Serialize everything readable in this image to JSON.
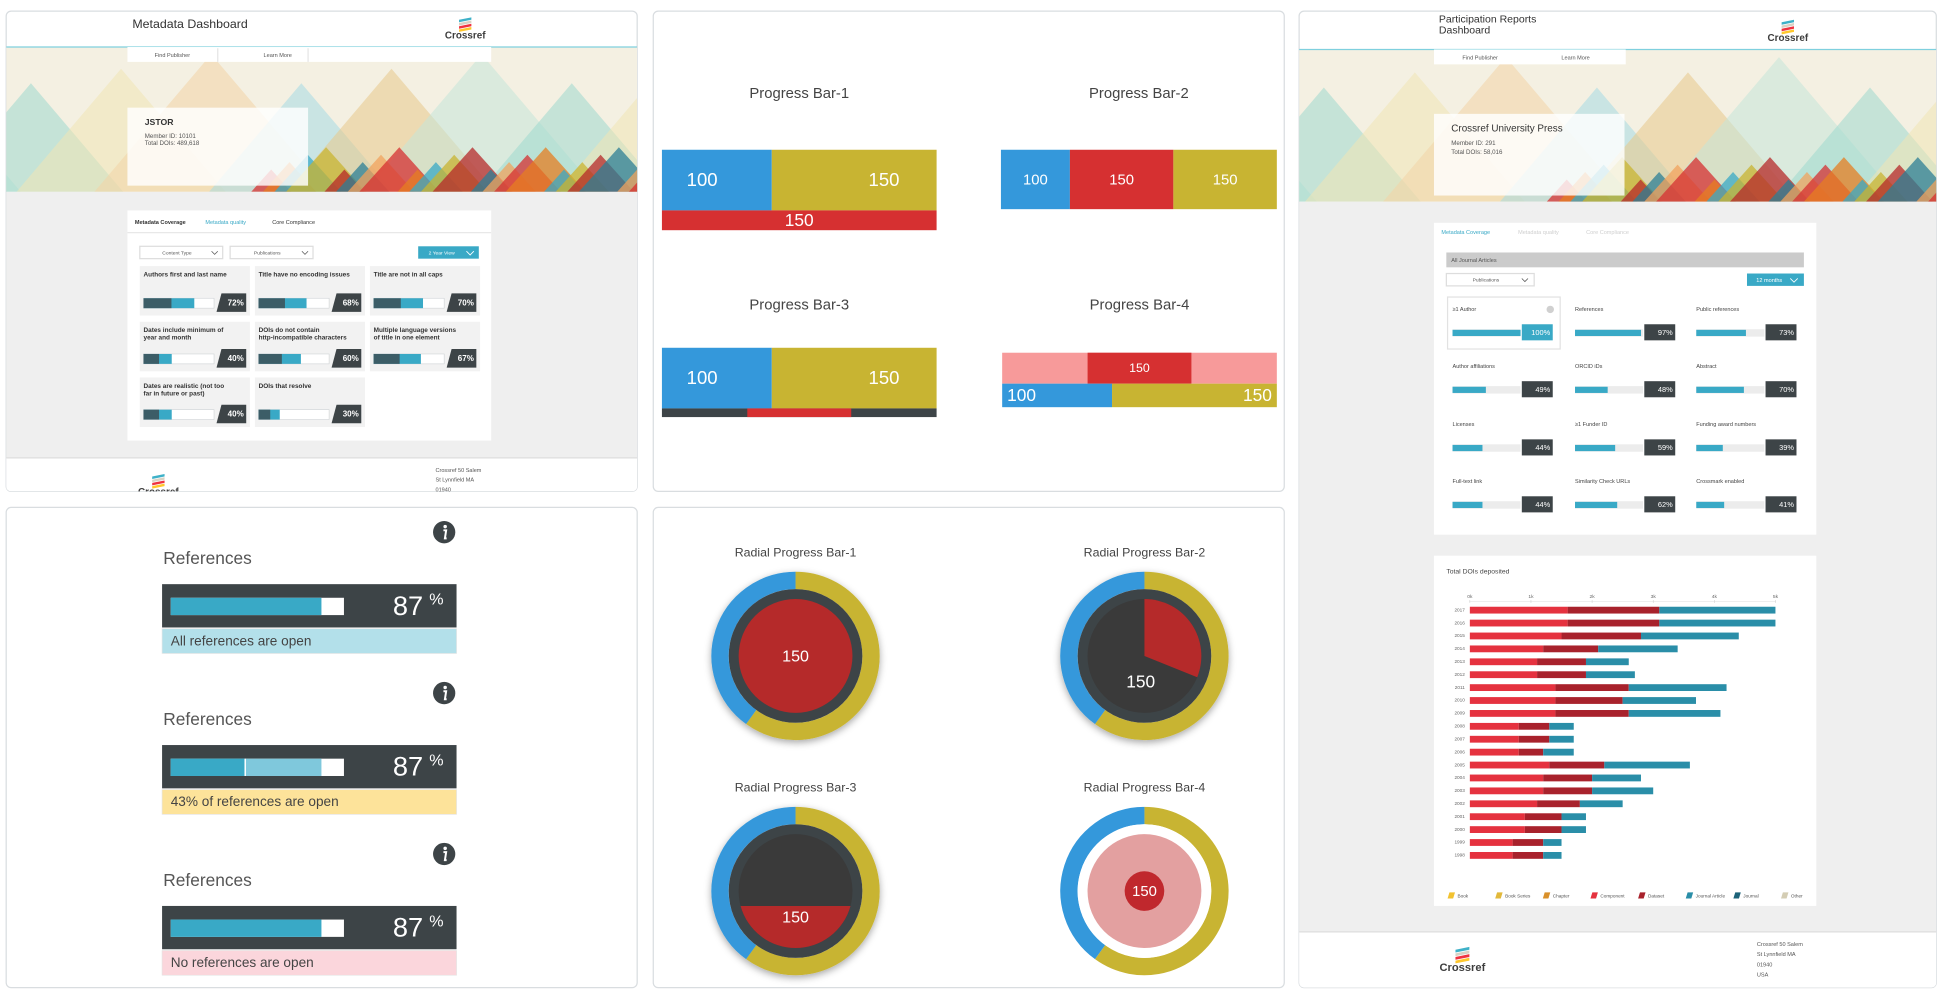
{
  "metadata_dashboard": {
    "title": "Metadata Dashboard",
    "brand": "Crossref",
    "nav": [
      "Find Publisher",
      "Learn More"
    ],
    "member": {
      "name": "JSTOR",
      "details": [
        "Member ID: 10101",
        "Total DOIs: 489,618"
      ]
    },
    "tabs": [
      "Metadata Coverage",
      "Metadata quality",
      "Core Compliance"
    ],
    "filters": [
      "Content Type",
      "Publications"
    ],
    "view": "2 Year View",
    "cards": [
      {
        "label": [
          "Authors first and last name"
        ],
        "value": 72,
        "value_label": "72%"
      },
      {
        "label": [
          "Title have no encoding issues"
        ],
        "value": 68,
        "value_label": "68%"
      },
      {
        "label": [
          "Title are not in all caps"
        ],
        "value": 70,
        "value_label": "70%"
      },
      {
        "label": [
          "Dates include minimum of",
          "year and month"
        ],
        "value": 40,
        "value_label": "40%"
      },
      {
        "label": [
          "DOIs do not contain",
          "http-incompatible characters"
        ],
        "value": 60,
        "value_label": "60%"
      },
      {
        "label": [
          "Multiple language versions",
          "of title in one element"
        ],
        "value": 67,
        "value_label": "67%"
      },
      {
        "label": [
          "Dates are realistic (not too",
          "far in future or past)"
        ],
        "value": 40,
        "value_label": "40%"
      },
      {
        "label": [
          "DOIs that resolve"
        ],
        "value": 30,
        "value_label": "30%"
      }
    ],
    "footer": [
      "Crossref 50 Salem",
      "St Lynnfield MA",
      "01940"
    ]
  },
  "progress_bars": [
    {
      "title": "Progress Bar-1",
      "rows": [
        [
          {
            "value": 100,
            "color": "#3498db"
          },
          {
            "value": 150,
            "color": "#c8b432"
          }
        ],
        [
          {
            "value": 150,
            "color": "#d63031"
          }
        ]
      ]
    },
    {
      "title": "Progress Bar-2",
      "rows": [
        [
          {
            "value": 100,
            "color": "#3498db"
          },
          {
            "value": 150,
            "color": "#d63031"
          },
          {
            "value": 150,
            "color": "#c8b432"
          }
        ]
      ]
    },
    {
      "title": "Progress Bar-3",
      "rows": [
        [
          {
            "value": 100,
            "color": "#3498db"
          },
          {
            "value": 150,
            "color": "#c8b432"
          }
        ]
      ]
    },
    {
      "title": "Progress Bar-4",
      "rows": [
        [
          {
            "value": 150,
            "color": "#d63031"
          }
        ],
        [
          {
            "value": 100,
            "color": "#3498db"
          },
          {
            "value": 150,
            "color": "#c8b432"
          }
        ]
      ]
    }
  ],
  "references_cards": [
    {
      "title": "References",
      "value": 87,
      "unit": "%",
      "caption": "All references are open"
    },
    {
      "title": "References",
      "value": 87,
      "open": 43,
      "unit": "%",
      "caption": "43% of references are open"
    },
    {
      "title": "References",
      "value": 87,
      "unit": "%",
      "caption": "No references are open"
    }
  ],
  "radial_bars": [
    {
      "title": "Radial Progress Bar-1",
      "ring": [
        {
          "value": 150,
          "color": "#c8b432"
        },
        {
          "value": 100,
          "color": "#3498db"
        }
      ],
      "value": 150
    },
    {
      "title": "Radial Progress Bar-2",
      "ring": [
        {
          "value": 150,
          "color": "#c8b432"
        },
        {
          "value": 100,
          "color": "#3498db"
        }
      ],
      "value": 150
    },
    {
      "title": "Radial Progress Bar-3",
      "ring": [
        {
          "value": 150,
          "color": "#c8b432"
        },
        {
          "value": 100,
          "color": "#3498db"
        }
      ],
      "value": 150
    },
    {
      "title": "Radial Progress Bar-4",
      "ring": [
        {
          "value": 150,
          "color": "#c8b432"
        },
        {
          "value": 100,
          "color": "#3498db"
        }
      ],
      "value": 150
    }
  ],
  "participation_dashboard": {
    "title": [
      "Participation Reports",
      "Dashboard"
    ],
    "brand": "Crossref",
    "nav": [
      "Find Publisher",
      "Learn More"
    ],
    "member": {
      "name": "Crossref University Press",
      "details": [
        "Member ID: 291",
        "Total DOIs: 58,016"
      ]
    },
    "tabs": [
      "Metadata Coverage",
      "Metadata quality",
      "Core Compliance"
    ],
    "filter_bar": "All Journal Articles",
    "filters": [
      "Publications"
    ],
    "view": "12 months",
    "cards": [
      {
        "label": "≥1 Author",
        "value": 100,
        "value_label": "100%"
      },
      {
        "label": "References",
        "value": 97,
        "value_label": "97%"
      },
      {
        "label": "Public references",
        "value": 73,
        "value_label": "73%"
      },
      {
        "label": "Author affiliations",
        "value": 49,
        "value_label": "49%"
      },
      {
        "label": "ORCID iDs",
        "value": 48,
        "value_label": "48%"
      },
      {
        "label": "Abstract",
        "value": 70,
        "value_label": "70%"
      },
      {
        "label": "Licenses",
        "value": 44,
        "value_label": "44%"
      },
      {
        "label": "≥1 Funder ID",
        "value": 59,
        "value_label": "59%"
      },
      {
        "label": "Funding award numbers",
        "value": 39,
        "value_label": "39%"
      },
      {
        "label": "Full-text link",
        "value": 44,
        "value_label": "44%"
      },
      {
        "label": "Similarity Check URLs",
        "value": 62,
        "value_label": "62%"
      },
      {
        "label": "Crossmark enabled",
        "value": 41,
        "value_label": "41%"
      }
    ],
    "footer": [
      "Crossref 50 Salem",
      "St Lynnfield MA",
      "01940",
      "USA"
    ]
  },
  "chart_data": {
    "type": "bar",
    "orientation": "horizontal",
    "stacked": true,
    "title": "Total DOIs deposited",
    "categories": [
      "2017",
      "2016",
      "2015",
      "2014",
      "2013",
      "2012",
      "2011",
      "2010",
      "2009",
      "2008",
      "2007",
      "2006",
      "2005",
      "2004",
      "2003",
      "2002",
      "2001",
      "2000",
      "1999",
      "1998"
    ],
    "series": [
      {
        "name": "Book",
        "color": "#f2c230",
        "values": [
          0,
          0,
          0,
          0,
          0,
          0,
          0,
          0,
          0,
          0,
          0,
          0,
          0,
          0,
          0,
          0,
          0,
          0,
          0,
          0
        ]
      },
      {
        "name": "Book Series",
        "color": "#e2b93b",
        "values": [
          0,
          0,
          0,
          0,
          0,
          0,
          0,
          0,
          0,
          0,
          0,
          0,
          0,
          0,
          0,
          0,
          0,
          0,
          0,
          0
        ]
      },
      {
        "name": "Chapter",
        "color": "#d9902a",
        "values": [
          0,
          0,
          0,
          0,
          0,
          0,
          0,
          0,
          0,
          0,
          0,
          0,
          0,
          0,
          0,
          0,
          0,
          0,
          0,
          0
        ]
      },
      {
        "name": "Component",
        "color": "#e5323f",
        "values": [
          1600,
          1600,
          1500,
          1200,
          1100,
          1100,
          1400,
          1400,
          1400,
          800,
          800,
          800,
          1300,
          1200,
          1200,
          1100,
          900,
          900,
          700,
          700
        ]
      },
      {
        "name": "Dataset",
        "color": "#a8222c",
        "values": [
          1500,
          1500,
          1300,
          900,
          800,
          800,
          1200,
          1100,
          1200,
          500,
          500,
          400,
          900,
          800,
          800,
          700,
          600,
          600,
          500,
          500
        ]
      },
      {
        "name": "Journal Article",
        "color": "#2a8ea8",
        "values": [
          1900,
          1900,
          1600,
          1300,
          700,
          800,
          1600,
          1200,
          1500,
          400,
          400,
          500,
          1400,
          800,
          1000,
          700,
          400,
          400,
          300,
          300
        ]
      },
      {
        "name": "Journal",
        "color": "#1d6379",
        "values": [
          0,
          0,
          0,
          0,
          0,
          0,
          0,
          0,
          0,
          0,
          0,
          0,
          0,
          0,
          0,
          0,
          0,
          0,
          0,
          0
        ]
      },
      {
        "name": "Other",
        "color": "#d4cdb4",
        "values": [
          0,
          0,
          0,
          0,
          0,
          0,
          0,
          0,
          0,
          0,
          0,
          0,
          0,
          0,
          0,
          0,
          0,
          0,
          0,
          0
        ]
      }
    ],
    "xlim": [
      0,
      5000
    ],
    "xticks": [
      {
        "value": 0,
        "label": "0k"
      },
      {
        "value": 1000,
        "label": "1k"
      },
      {
        "value": 2000,
        "label": "2k"
      },
      {
        "value": 3000,
        "label": "3k"
      },
      {
        "value": 4000,
        "label": "4k"
      },
      {
        "value": 5000,
        "label": "5k"
      }
    ],
    "grid": false
  }
}
